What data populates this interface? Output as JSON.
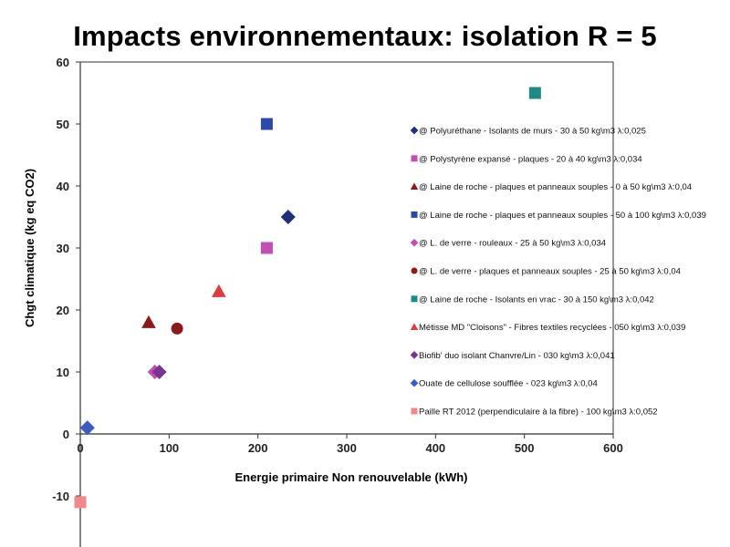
{
  "title": "Impacts environnementaux: isolation R = 5",
  "chart_data": {
    "type": "scatter",
    "xlabel": "Energie primaire Non renouvelable (kWh)",
    "ylabel": "Chgt climatique (kg eq CO2)",
    "xlim": [
      0,
      600
    ],
    "ylim": [
      -10,
      60
    ],
    "x_ticks": [
      0,
      100,
      200,
      300,
      400,
      500,
      600
    ],
    "y_ticks": [
      -10,
      0,
      10,
      20,
      30,
      40,
      50,
      60
    ],
    "grid": false,
    "legend_position": "right",
    "series": [
      {
        "name": "@ Polyuréthane  - Isolants de murs  - 30 à 50 kg\\m3 λ:0,025",
        "marker": "diamond",
        "color": "#1f2f7a",
        "points": [
          {
            "x": 234,
            "y": 35
          }
        ]
      },
      {
        "name": "@ Polystyrène expansé - plaques - 20 à 40 kg\\m3 λ:0,034",
        "marker": "square",
        "color": "#c04fb0",
        "points": [
          {
            "x": 210,
            "y": 30
          }
        ]
      },
      {
        "name": "@ Laine de roche - plaques et panneaux souples - 0 à 50 kg\\m3 λ:0,04",
        "marker": "triangle",
        "color": "#8b1a1a",
        "points": [
          {
            "x": 77,
            "y": 18
          }
        ]
      },
      {
        "name": "@ Laine de roche - plaques et panneaux souples - 50 à 100 kg\\m3 λ:0,039",
        "marker": "square",
        "color": "#2b4aa8",
        "points": [
          {
            "x": 210,
            "y": 50
          }
        ]
      },
      {
        "name": "@ L. de verre - rouleaux - 25 à 50 kg\\m3 λ:0,034",
        "marker": "diamond",
        "color": "#c04fb0",
        "points": [
          {
            "x": 84,
            "y": 10
          }
        ]
      },
      {
        "name": "@ L. de verre - plaques et panneaux souples - 25 à 50 kg\\m3 λ:0,04",
        "marker": "circle",
        "color": "#8b1a1a",
        "points": [
          {
            "x": 109,
            "y": 17
          }
        ]
      },
      {
        "name": "@ Laine de roche - Isolants en vrac - 30 à 150 kg\\m3 λ:0,042",
        "marker": "square",
        "color": "#1f8a86",
        "points": [
          {
            "x": 512,
            "y": 55
          }
        ]
      },
      {
        "name": "Métisse MD \"Cloisons\" - Fibres textiles recyclées - 050 kg\\m3 λ:0,039",
        "marker": "triangle",
        "color": "#e0393e",
        "points": [
          {
            "x": 156,
            "y": 23
          }
        ]
      },
      {
        "name": "Biofib' duo isolant Chanvre/Lin - 030 kg\\m3 λ:0,041",
        "marker": "diamond",
        "color": "#7a3590",
        "points": [
          {
            "x": 89,
            "y": 10
          }
        ]
      },
      {
        "name": "Ouate de cellulose soufflée - 023 kg\\m3 λ:0,04",
        "marker": "diamond",
        "color": "#3a5cc0",
        "points": [
          {
            "x": 8,
            "y": 1
          }
        ]
      },
      {
        "name": "Paille RT 2012 (perpendiculaire  à la fibre) - 100 kg\\m3 λ:0,052",
        "marker": "square",
        "color": "#f08a8a",
        "points": [
          {
            "x": 0,
            "y": -11
          }
        ]
      }
    ]
  }
}
